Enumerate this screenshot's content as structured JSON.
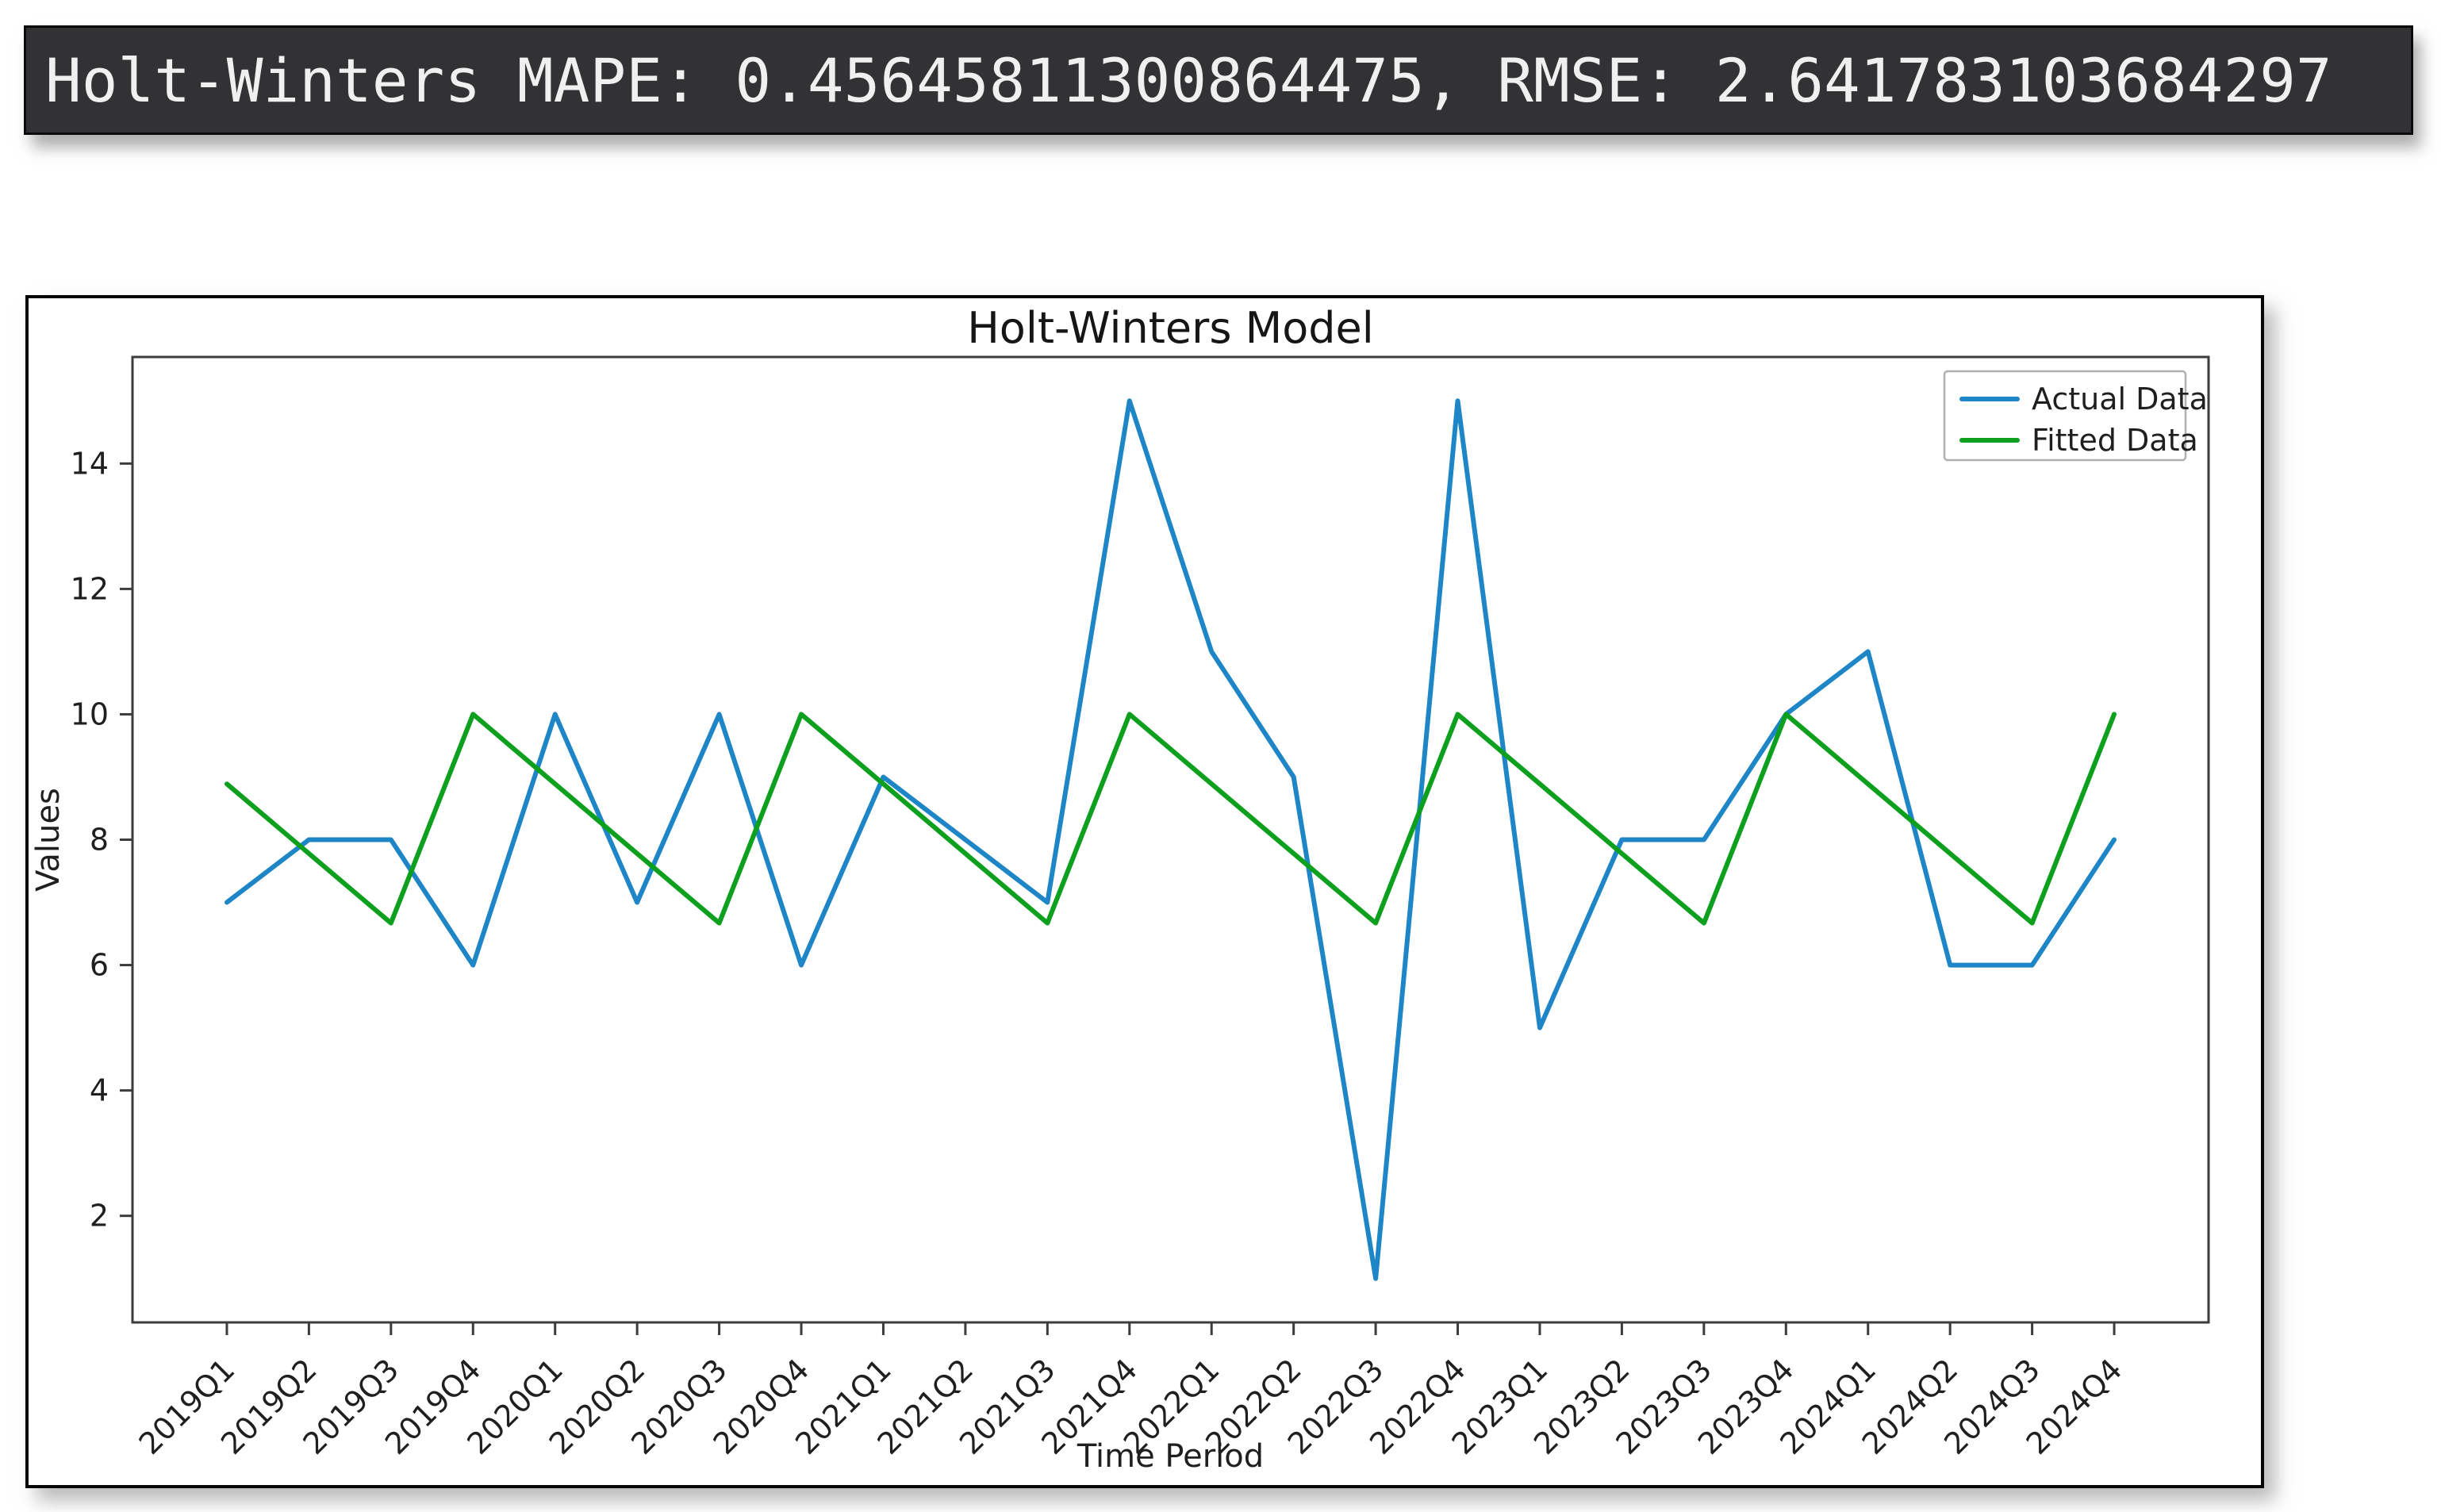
{
  "terminal": {
    "output_text": "Holt-Winters MAPE: 0.45645811300864475, RMSE: 2.641783103684297",
    "background_color": "#323234",
    "text_color": "#f0f0f0"
  },
  "chart_data": {
    "type": "line",
    "title": "Holt-Winters Model",
    "xlabel": "Time Period",
    "ylabel": "Values",
    "categories": [
      "2019Q1",
      "2019Q2",
      "2019Q3",
      "2019Q4",
      "2020Q1",
      "2020Q2",
      "2020Q3",
      "2020Q4",
      "2021Q1",
      "2021Q2",
      "2021Q3",
      "2021Q4",
      "2022Q1",
      "2022Q2",
      "2022Q3",
      "2022Q4",
      "2023Q1",
      "2023Q2",
      "2023Q3",
      "2023Q4",
      "2024Q1",
      "2024Q2",
      "2024Q3",
      "2024Q4"
    ],
    "series": [
      {
        "name": "Actual Data",
        "color": "#1e86c7",
        "values": [
          7,
          8,
          8,
          6,
          10,
          7,
          10,
          6,
          9,
          8,
          7,
          15,
          11,
          9,
          1,
          15,
          5,
          8,
          8,
          10,
          11,
          6,
          6,
          8
        ]
      },
      {
        "name": "Fitted Data",
        "color": "#0da01e",
        "values": [
          8.89,
          7.78,
          6.67,
          10,
          8.89,
          7.78,
          6.67,
          10,
          8.89,
          7.78,
          6.67,
          10,
          8.89,
          7.78,
          6.67,
          10,
          8.89,
          7.78,
          6.67,
          10,
          8.89,
          7.78,
          6.67,
          10
        ]
      }
    ],
    "yticks": [
      2,
      4,
      6,
      8,
      10,
      12,
      14
    ],
    "ylim": [
      0.3,
      15.7
    ],
    "xlim": [
      -1.15,
      24.15
    ],
    "x_tick_rotation": 45,
    "grid": false,
    "legend": {
      "position": "upper right",
      "entries": [
        "Actual Data",
        "Fitted Data"
      ]
    },
    "spine_color": "#3c3c3c",
    "text_color": "#1f1f1f"
  }
}
